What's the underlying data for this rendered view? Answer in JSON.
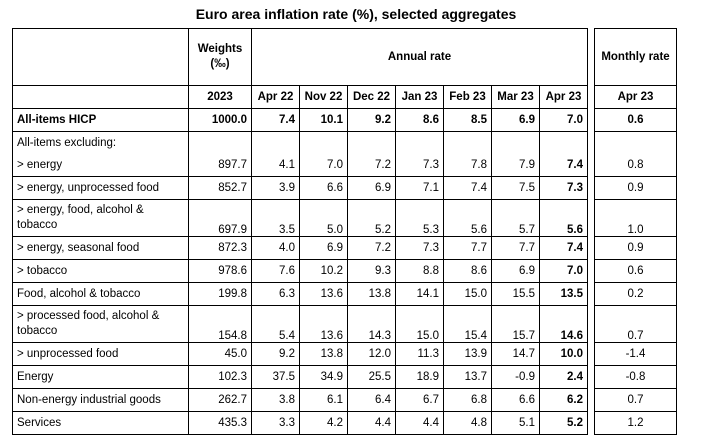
{
  "title": "Euro area inflation rate (%), selected aggregates",
  "headers": {
    "weights": "Weights (‰)",
    "annual_rate": "Annual rate",
    "monthly_rate": "Monthly rate",
    "weights_year": "2023",
    "months": [
      "Apr 22",
      "Nov 22",
      "Dec 22",
      "Jan 23",
      "Feb 23",
      "Mar 23",
      "Apr 23"
    ],
    "monthly_month": "Apr 23"
  },
  "rows": [
    {
      "label": "All-items HICP",
      "weight": "1000.0",
      "values": [
        "7.4",
        "10.1",
        "9.2",
        "8.6",
        "8.5",
        "6.9",
        "7.0"
      ],
      "monthly": "0.6"
    },
    {
      "label": "All-items excluding:",
      "weight": "",
      "values": [
        "",
        "",
        "",
        "",
        "",
        "",
        ""
      ],
      "monthly": ""
    },
    {
      "label": "> energy",
      "weight": "897.7",
      "values": [
        "4.1",
        "7.0",
        "7.2",
        "7.3",
        "7.8",
        "7.9",
        "7.4"
      ],
      "monthly": "0.8"
    },
    {
      "label": "> energy, unprocessed food",
      "weight": "852.7",
      "values": [
        "3.9",
        "6.6",
        "6.9",
        "7.1",
        "7.4",
        "7.5",
        "7.3"
      ],
      "monthly": "0.9"
    },
    {
      "label": "> energy, food, alcohol & tobacco",
      "weight": "697.9",
      "values": [
        "3.5",
        "5.0",
        "5.2",
        "5.3",
        "5.6",
        "5.7",
        "5.6"
      ],
      "monthly": "1.0"
    },
    {
      "label": "> energy, seasonal food",
      "weight": "872.3",
      "values": [
        "4.0",
        "6.9",
        "7.2",
        "7.3",
        "7.7",
        "7.7",
        "7.4"
      ],
      "monthly": "0.9"
    },
    {
      "label": "> tobacco",
      "weight": "978.6",
      "values": [
        "7.6",
        "10.2",
        "9.3",
        "8.8",
        "8.6",
        "6.9",
        "7.0"
      ],
      "monthly": "0.6"
    },
    {
      "label": "Food, alcohol & tobacco",
      "weight": "199.8",
      "values": [
        "6.3",
        "13.6",
        "13.8",
        "14.1",
        "15.0",
        "15.5",
        "13.5"
      ],
      "monthly": "0.2"
    },
    {
      "label": "> processed food, alcohol & tobacco",
      "weight": "154.8",
      "values": [
        "5.4",
        "13.6",
        "14.3",
        "15.0",
        "15.4",
        "15.7",
        "14.6"
      ],
      "monthly": "0.7"
    },
    {
      "label": "> unprocessed food",
      "weight": "45.0",
      "values": [
        "9.2",
        "13.8",
        "12.0",
        "11.3",
        "13.9",
        "14.7",
        "10.0"
      ],
      "monthly": "-1.4"
    },
    {
      "label": "Energy",
      "weight": "102.3",
      "values": [
        "37.5",
        "34.9",
        "25.5",
        "18.9",
        "13.7",
        "-0.9",
        "2.4"
      ],
      "monthly": "-0.8"
    },
    {
      "label": "Non-energy industrial goods",
      "weight": "262.7",
      "values": [
        "3.8",
        "6.1",
        "6.4",
        "6.7",
        "6.8",
        "6.6",
        "6.2"
      ],
      "monthly": "0.7"
    },
    {
      "label": "Services",
      "weight": "435.3",
      "values": [
        "3.3",
        "4.2",
        "4.4",
        "4.4",
        "4.8",
        "5.1",
        "5.2"
      ],
      "monthly": "1.2"
    }
  ]
}
